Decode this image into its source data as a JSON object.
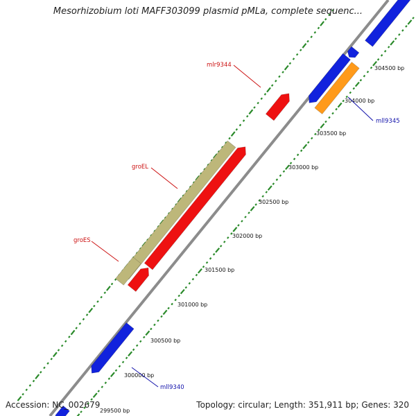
{
  "title": "Mesorhizobium loti MAFF303099 plasmid pMLa, complete sequenc...",
  "footer": {
    "accession": "Accession: NC_002679",
    "summary": "Topology: circular; Length: 351,911 bp; Genes: 320"
  },
  "colors": {
    "backbone": "#8c8c8c",
    "tick": "#2a8a2a",
    "forward_gene": "#ee1111",
    "reverse_gene": "#1122dd",
    "groEL_forward": "#bdb77a",
    "orange_gene": "#ff9a1a",
    "label_red": "#cc1111",
    "label_blue": "#1111aa"
  },
  "ticks": [
    {
      "label": "299500 bp"
    },
    {
      "label": "300000 bp"
    },
    {
      "label": "300500 bp"
    },
    {
      "label": "301000 bp"
    },
    {
      "label": "301500 bp"
    },
    {
      "label": "302000 bp"
    },
    {
      "label": "302500 bp"
    },
    {
      "label": "303000 bp"
    },
    {
      "label": "303500 bp"
    },
    {
      "label": "304000 bp"
    },
    {
      "label": "304500 bp"
    }
  ],
  "gene_labels": [
    {
      "name": "mlr9344",
      "color": "red"
    },
    {
      "name": "groEL",
      "color": "red"
    },
    {
      "name": "groES",
      "color": "red"
    },
    {
      "name": "mll9345",
      "color": "blue"
    },
    {
      "name": "mll9340",
      "color": "blue"
    }
  ]
}
